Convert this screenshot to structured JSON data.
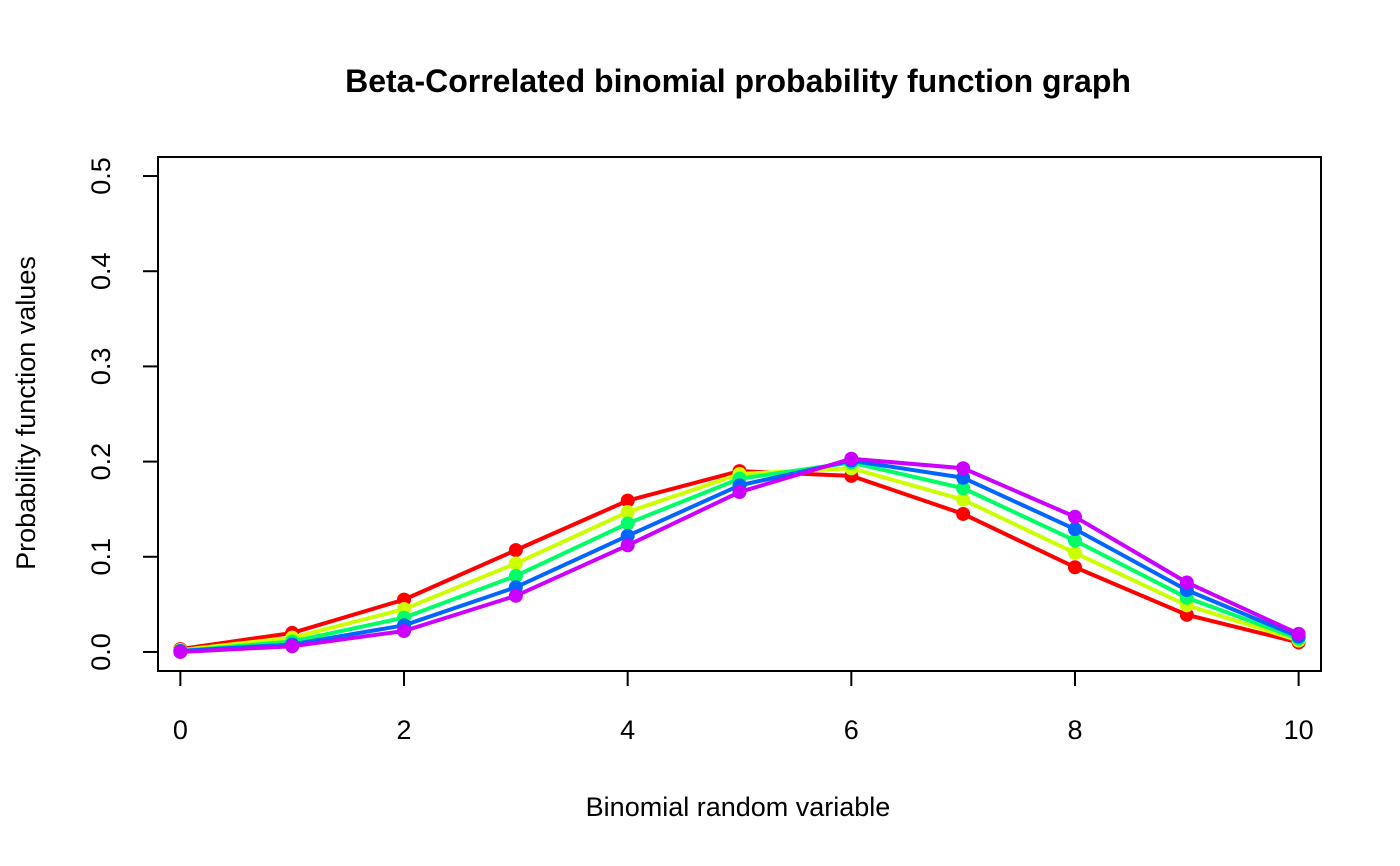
{
  "chart_data": {
    "type": "line",
    "title": "Beta-Correlated binomial probability function graph",
    "xlabel": "Binomial random variable",
    "ylabel": "Probability function values",
    "xlim": [
      -0.2,
      10.2
    ],
    "ylim": [
      -0.02,
      0.52
    ],
    "xticks": [
      0,
      2,
      4,
      6,
      8,
      10
    ],
    "yticks": [
      0.0,
      0.1,
      0.2,
      0.3,
      0.4,
      0.5
    ],
    "ytick_labels": [
      "0.0",
      "0.1",
      "0.2",
      "0.3",
      "0.4",
      "0.5"
    ],
    "x": [
      0,
      1,
      2,
      3,
      4,
      5,
      6,
      7,
      8,
      9,
      10
    ],
    "grid": false,
    "series": [
      {
        "color": "#FF0000",
        "values": [
          0.003,
          0.02,
          0.055,
          0.107,
          0.159,
          0.19,
          0.185,
          0.145,
          0.089,
          0.039,
          0.01
        ]
      },
      {
        "color": "#CCFF00",
        "values": [
          0.002,
          0.015,
          0.045,
          0.093,
          0.147,
          0.187,
          0.193,
          0.16,
          0.104,
          0.049,
          0.012
        ]
      },
      {
        "color": "#00FF66",
        "values": [
          0.001,
          0.011,
          0.036,
          0.08,
          0.135,
          0.182,
          0.199,
          0.172,
          0.117,
          0.057,
          0.014
        ]
      },
      {
        "color": "#0066FF",
        "values": [
          0.001,
          0.008,
          0.028,
          0.068,
          0.122,
          0.175,
          0.201,
          0.183,
          0.129,
          0.065,
          0.016
        ]
      },
      {
        "color": "#CC00FF",
        "values": [
          0.0,
          0.006,
          0.022,
          0.059,
          0.112,
          0.168,
          0.203,
          0.193,
          0.142,
          0.073,
          0.019
        ]
      }
    ]
  }
}
